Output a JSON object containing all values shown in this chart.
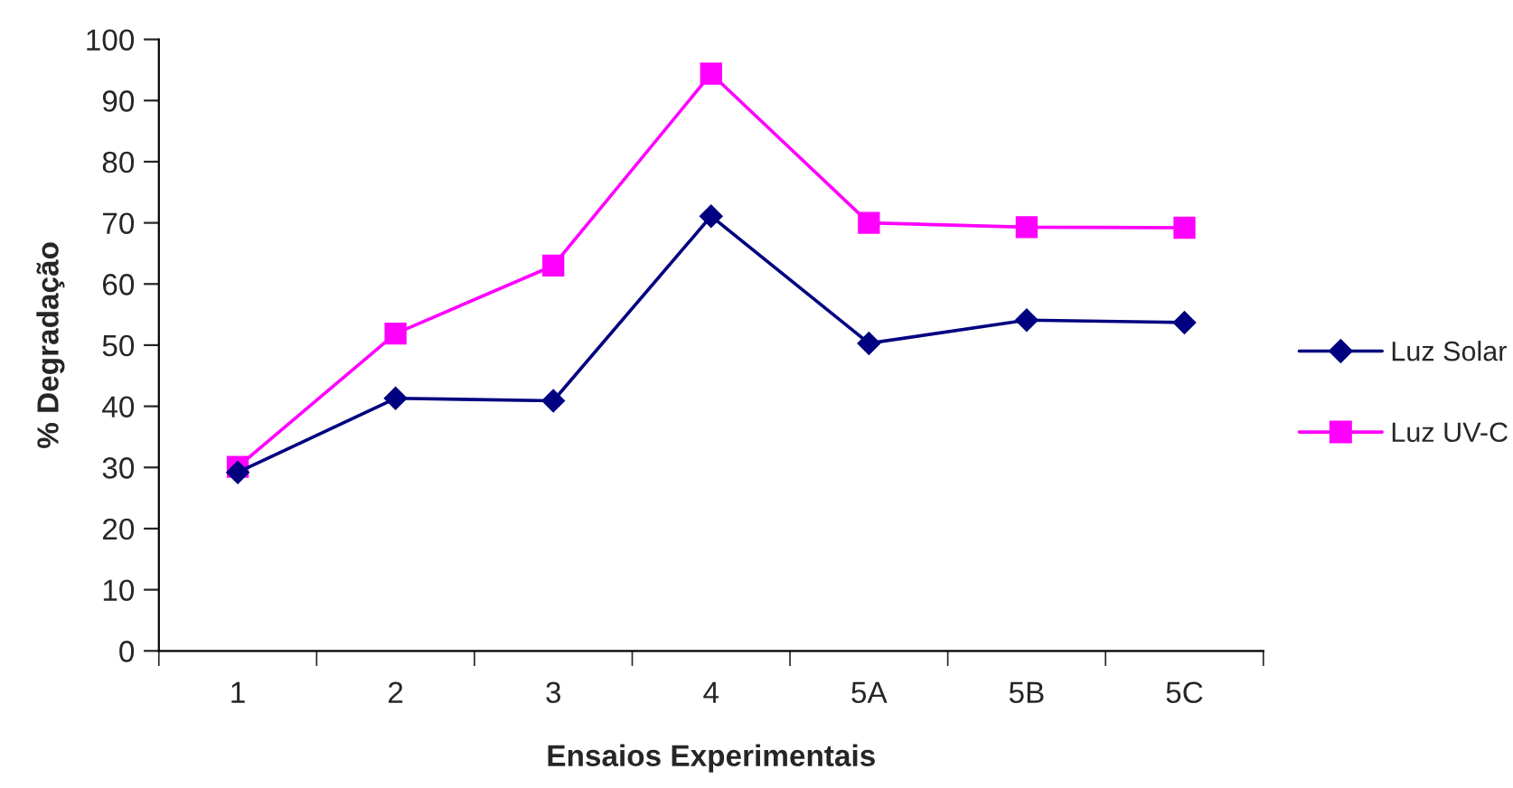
{
  "chart_data": {
    "type": "line",
    "xlabel": "Ensaios Experimentais",
    "ylabel": "% Degradação",
    "categories": [
      "1",
      "2",
      "3",
      "4",
      "5A",
      "5B",
      "5C"
    ],
    "series": [
      {
        "name": "Luz Solar",
        "color": "#000080",
        "marker": "diamond",
        "values": [
          29.2,
          41.3,
          40.9,
          71.1,
          50.3,
          54.1,
          53.7
        ]
      },
      {
        "name": "Luz UV-C",
        "color": "#ff00ff",
        "marker": "square",
        "values": [
          30.1,
          51.9,
          63.0,
          94.4,
          70.0,
          69.3,
          69.2
        ]
      }
    ],
    "ylim": [
      0,
      100
    ],
    "yticks": [
      0,
      10,
      20,
      30,
      40,
      50,
      60,
      70,
      80,
      90,
      100
    ],
    "grid": false,
    "legend": "right",
    "line_style": "solid"
  }
}
